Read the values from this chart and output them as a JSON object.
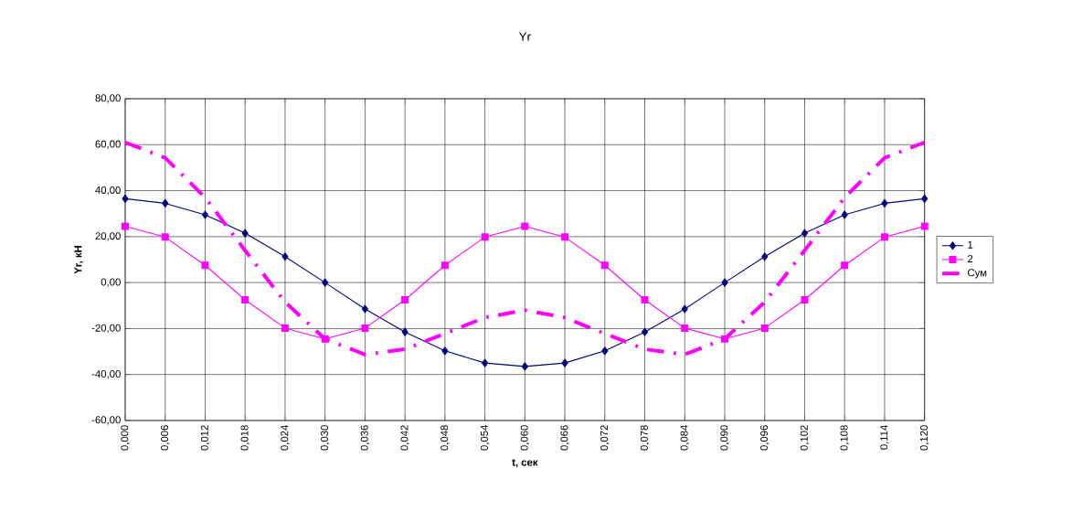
{
  "chart_data": {
    "type": "line",
    "title": "Yr",
    "xlabel": "t, сек",
    "ylabel": "Yr, кН",
    "x": [
      0,
      0.006,
      0.012,
      0.018,
      0.024,
      0.03,
      0.036,
      0.042,
      0.048,
      0.054,
      0.06,
      0.066,
      0.072,
      0.078,
      0.084,
      0.09,
      0.096,
      0.102,
      0.108,
      0.114,
      0.12
    ],
    "series": [
      {
        "name": "1",
        "color": "#000080",
        "marker": "diamond",
        "line_style": "solid",
        "values": [
          36.5,
          34.5,
          29.5,
          21.5,
          11.3,
          0,
          -11.5,
          -21.5,
          -29.7,
          -35,
          -36.5,
          -35,
          -29.7,
          -21.5,
          -11.5,
          0,
          11.3,
          21.5,
          29.5,
          34.5,
          36.5
        ]
      },
      {
        "name": "2",
        "color": "#ff00ff",
        "marker": "square",
        "line_style": "solid",
        "values": [
          24.5,
          19.8,
          7.5,
          -7.5,
          -19.8,
          -24.5,
          -19.8,
          -7.5,
          7.5,
          19.8,
          24.5,
          19.8,
          7.5,
          -7.5,
          -19.8,
          -24.5,
          -19.8,
          -7.5,
          7.5,
          19.8,
          24.5
        ]
      },
      {
        "name": "Сум",
        "color": "#ff00ff",
        "marker": "none",
        "line_style": "dashed",
        "values": [
          61,
          54.3,
          37,
          14,
          -8.5,
          -24.5,
          -31.3,
          -29,
          -22.2,
          -15.2,
          -12,
          -15.2,
          -22.2,
          -29,
          -31.3,
          -24.5,
          -8.5,
          14,
          37,
          54.3,
          61
        ]
      }
    ],
    "xlim": [
      0,
      0.12
    ],
    "ylim": [
      -60,
      80
    ],
    "xticks": [
      {
        "value": 0,
        "label": "0,000"
      },
      {
        "value": 0.006,
        "label": "0,006"
      },
      {
        "value": 0.012,
        "label": "0,012"
      },
      {
        "value": 0.018,
        "label": "0,018"
      },
      {
        "value": 0.024,
        "label": "0,024"
      },
      {
        "value": 0.03,
        "label": "0,030"
      },
      {
        "value": 0.036,
        "label": "0,036"
      },
      {
        "value": 0.042,
        "label": "0,042"
      },
      {
        "value": 0.048,
        "label": "0,048"
      },
      {
        "value": 0.054,
        "label": "0,054"
      },
      {
        "value": 0.06,
        "label": "0,060"
      },
      {
        "value": 0.066,
        "label": "0,066"
      },
      {
        "value": 0.072,
        "label": "0,072"
      },
      {
        "value": 0.078,
        "label": "0,078"
      },
      {
        "value": 0.084,
        "label": "0,084"
      },
      {
        "value": 0.09,
        "label": "0,090"
      },
      {
        "value": 0.096,
        "label": "0,096"
      },
      {
        "value": 0.102,
        "label": "0,102"
      },
      {
        "value": 0.108,
        "label": "0,108"
      },
      {
        "value": 0.114,
        "label": "0,114"
      },
      {
        "value": 0.12,
        "label": "0,120"
      }
    ],
    "yticks": [
      {
        "value": -60,
        "label": "-60,00"
      },
      {
        "value": -40,
        "label": "-40,00"
      },
      {
        "value": -20,
        "label": "-20,00"
      },
      {
        "value": 0,
        "label": "0,00"
      },
      {
        "value": 20,
        "label": "20,00"
      },
      {
        "value": 40,
        "label": "40,00"
      },
      {
        "value": 60,
        "label": "60,00"
      },
      {
        "value": 80,
        "label": "80,00"
      }
    ],
    "grid": true,
    "legend": "right"
  }
}
